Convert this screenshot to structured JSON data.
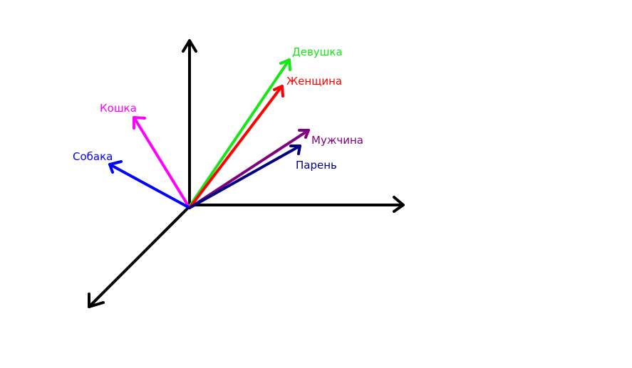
{
  "diagram": {
    "axes": [
      {
        "id": "axis-y",
        "direction": "up",
        "color": "#000000"
      },
      {
        "id": "axis-x",
        "direction": "right",
        "color": "#000000"
      },
      {
        "id": "axis-z",
        "direction": "down-left",
        "color": "#000000"
      }
    ],
    "vectors": [
      {
        "id": "devushka",
        "label": "Девушка",
        "color": "#19e619"
      },
      {
        "id": "zhenshchina",
        "label": "Женщина",
        "color": "#ff0000"
      },
      {
        "id": "koshka",
        "label": "Кошка",
        "color": "#ff00ff"
      },
      {
        "id": "sobaka",
        "label": "Собака",
        "color": "#0000ff"
      },
      {
        "id": "muzhchina",
        "label": "Мужчина",
        "color": "#800080"
      },
      {
        "id": "paren",
        "label": "Парень",
        "color": "#000080"
      }
    ]
  }
}
